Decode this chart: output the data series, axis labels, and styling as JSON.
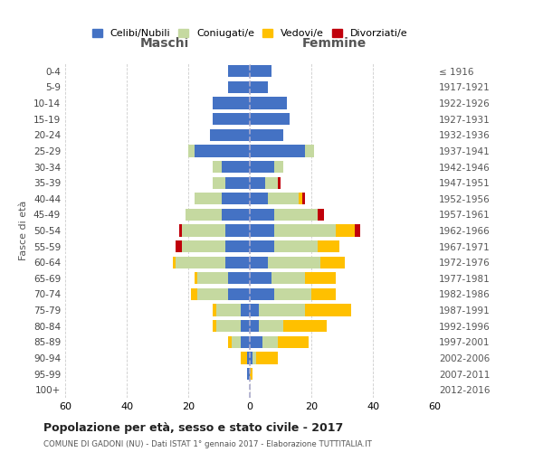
{
  "age_groups": [
    "0-4",
    "5-9",
    "10-14",
    "15-19",
    "20-24",
    "25-29",
    "30-34",
    "35-39",
    "40-44",
    "45-49",
    "50-54",
    "55-59",
    "60-64",
    "65-69",
    "70-74",
    "75-79",
    "80-84",
    "85-89",
    "90-94",
    "95-99",
    "100+"
  ],
  "birth_years": [
    "2012-2016",
    "2007-2011",
    "2002-2006",
    "1997-2001",
    "1992-1996",
    "1987-1991",
    "1982-1986",
    "1977-1981",
    "1972-1976",
    "1967-1971",
    "1962-1966",
    "1957-1961",
    "1952-1956",
    "1947-1951",
    "1942-1946",
    "1937-1941",
    "1932-1936",
    "1927-1931",
    "1922-1926",
    "1917-1921",
    "≤ 1916"
  ],
  "maschi_celibe": [
    7,
    7,
    12,
    12,
    13,
    18,
    9,
    8,
    9,
    9,
    8,
    8,
    8,
    7,
    7,
    3,
    3,
    3,
    1,
    1,
    0
  ],
  "maschi_coniugato": [
    0,
    0,
    0,
    0,
    0,
    2,
    3,
    4,
    9,
    12,
    14,
    14,
    16,
    10,
    10,
    8,
    8,
    3,
    0,
    0,
    0
  ],
  "maschi_vedovo": [
    0,
    0,
    0,
    0,
    0,
    0,
    0,
    0,
    0,
    0,
    0,
    0,
    1,
    1,
    2,
    1,
    1,
    1,
    2,
    0,
    0
  ],
  "maschi_divorziato": [
    0,
    0,
    0,
    0,
    0,
    0,
    0,
    0,
    0,
    0,
    1,
    2,
    0,
    0,
    0,
    0,
    0,
    0,
    0,
    0,
    0
  ],
  "femmine_celibe": [
    7,
    6,
    12,
    13,
    11,
    18,
    8,
    5,
    6,
    8,
    8,
    8,
    6,
    7,
    8,
    3,
    3,
    4,
    1,
    0,
    0
  ],
  "femmine_coniugato": [
    0,
    0,
    0,
    0,
    0,
    3,
    3,
    4,
    10,
    14,
    20,
    14,
    17,
    11,
    12,
    15,
    8,
    5,
    1,
    0,
    0
  ],
  "femmine_vedovo": [
    0,
    0,
    0,
    0,
    0,
    0,
    0,
    0,
    1,
    0,
    6,
    7,
    8,
    10,
    8,
    15,
    14,
    10,
    7,
    1,
    0
  ],
  "femmine_divorziato": [
    0,
    0,
    0,
    0,
    0,
    0,
    0,
    1,
    1,
    2,
    2,
    0,
    0,
    0,
    0,
    0,
    0,
    0,
    0,
    0,
    0
  ],
  "color_celibe": "#4472c4",
  "color_coniugato": "#c5d9a0",
  "color_vedovo": "#ffc000",
  "color_divorziato": "#c0000b",
  "title": "Popolazione per età, sesso e stato civile - 2017",
  "subtitle": "COMUNE DI GADONI (NU) - Dati ISTAT 1° gennaio 2017 - Elaborazione TUTTITALIA.IT",
  "xlabel_left": "Maschi",
  "xlabel_right": "Femmine",
  "ylabel_left": "Fasce di età",
  "xlim": 60,
  "background_color": "#ffffff",
  "grid_color": "#cccccc"
}
